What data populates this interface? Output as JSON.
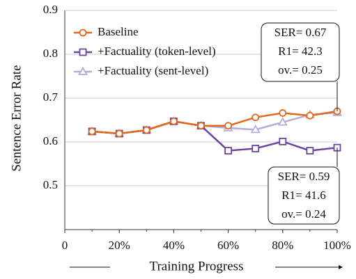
{
  "chart_data": {
    "type": "line",
    "x": [
      10,
      20,
      30,
      40,
      50,
      60,
      70,
      80,
      90,
      100
    ],
    "series": [
      {
        "name": "Baseline",
        "color": "#e2681c",
        "marker": "circle",
        "values": [
          0.624,
          0.619,
          0.627,
          0.647,
          0.637,
          0.637,
          0.656,
          0.666,
          0.66,
          0.67
        ]
      },
      {
        "name": "+Factuality (token-level)",
        "color": "#6a44a0",
        "marker": "square",
        "values": [
          0.624,
          0.619,
          0.627,
          0.647,
          0.637,
          0.58,
          0.585,
          0.601,
          0.58,
          0.587
        ]
      },
      {
        "name": "+Factuality (sent-level)",
        "color": "#b3abd9",
        "marker": "triangle",
        "values": [
          0.624,
          0.619,
          0.627,
          0.647,
          0.637,
          0.632,
          0.628,
          0.645,
          0.662,
          0.667
        ]
      }
    ],
    "xlim": [
      0,
      100
    ],
    "xticks": [
      0,
      {
        "value": 20,
        "label": "20%"
      },
      {
        "value": 40,
        "label": "40%"
      },
      {
        "value": 60,
        "label": "60%"
      },
      {
        "value": 80,
        "label": "80%"
      },
      {
        "value": 100,
        "label": "100%"
      }
    ],
    "ylim": [
      0.4,
      0.9
    ],
    "yticks": [
      0.5,
      0.6,
      0.7,
      0.8,
      0.9
    ],
    "xlabel": "Training Progress",
    "ylabel": "Sentence Error Rate",
    "grid": true,
    "legend": "upper left",
    "annotations": [
      {
        "lines": [
          "SER= 0.67",
          "R1= 42.3",
          "ov.= 0.25"
        ]
      },
      {
        "lines": [
          "SER= 0.59",
          "R1= 41.6",
          "ov.= 0.24"
        ]
      }
    ]
  }
}
